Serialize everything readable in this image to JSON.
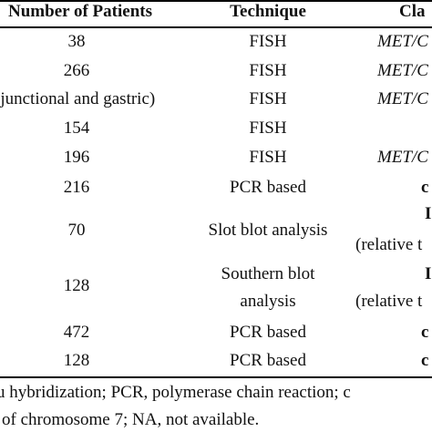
{
  "table": {
    "headers": [
      "Number of Patients",
      "Technique",
      "Cla"
    ],
    "rows": [
      {
        "patients": "38",
        "technique": "FISH",
        "classification": "MET/C"
      },
      {
        "patients": "266",
        "technique": "FISH",
        "classification": "MET/C"
      },
      {
        "patients": "(junctional and gastric)",
        "technique": "FISH",
        "classification": "MET/C"
      },
      {
        "patients": "154",
        "technique": "FISH",
        "classification": ""
      },
      {
        "patients": "196",
        "technique": "FISH",
        "classification": "MET/C"
      },
      {
        "patients": "216",
        "technique": "PCR based",
        "classification": "c"
      },
      {
        "patients": "70",
        "technique": "Slot blot analysis",
        "classification": "I",
        "classification_sub": "(relative t"
      },
      {
        "patients": "128",
        "technique": "Southern blot",
        "technique_sub": "analysis",
        "classification": "I",
        "classification_sub": "(relative t"
      },
      {
        "patients": "472",
        "technique": "PCR based",
        "classification": "c"
      },
      {
        "patients": "128",
        "technique": "PCR based",
        "classification": "c"
      }
    ]
  },
  "footnote": {
    "line1": "u hybridization; PCR, polymerase chain reaction; c",
    "line2": "of chromosome 7; NA, not available."
  }
}
